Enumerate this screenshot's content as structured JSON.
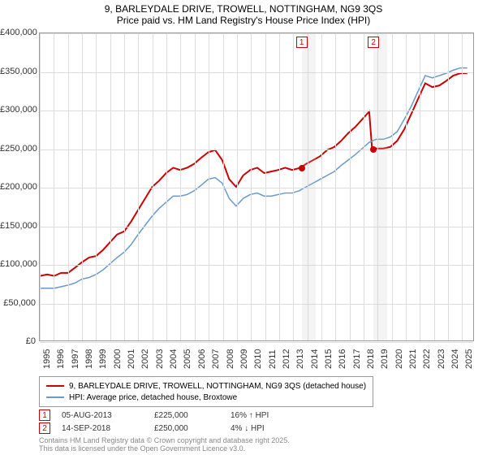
{
  "title": {
    "line1": "9, BARLEYDALE DRIVE, TROWELL, NOTTINGHAM, NG9 3QS",
    "line2": "Price paid vs. HM Land Registry's House Price Index (HPI)"
  },
  "chart": {
    "type": "line",
    "background_color": "#ffffff",
    "grid_color": "#dddddd",
    "border_color": "#999999",
    "x_axis": {
      "min": 1995,
      "max": 2025.9,
      "ticks": [
        1995,
        1996,
        1997,
        1998,
        1999,
        2000,
        2001,
        2002,
        2003,
        2004,
        2005,
        2006,
        2007,
        2008,
        2009,
        2010,
        2011,
        2012,
        2013,
        2014,
        2015,
        2016,
        2017,
        2018,
        2019,
        2020,
        2021,
        2022,
        2023,
        2024,
        2025
      ],
      "tick_fontsize": 11,
      "tick_rotation": -90
    },
    "y_axis": {
      "min": 0,
      "max": 400000,
      "ticks": [
        0,
        50000,
        100000,
        150000,
        200000,
        250000,
        300000,
        350000,
        400000
      ],
      "tick_labels": [
        "£0",
        "£50,000",
        "£100,000",
        "£150,000",
        "£200,000",
        "£250,000",
        "£300,000",
        "£350,000",
        "£400,000"
      ],
      "tick_fontsize": 11
    },
    "series": [
      {
        "name": "property_price",
        "label": "9, BARLEYDALE DRIVE, TROWELL, NOTTINGHAM, NG9 3QS (detached house)",
        "color": "#cc0000",
        "line_width": 2,
        "data": [
          [
            1995,
            84000
          ],
          [
            1995.5,
            86000
          ],
          [
            1996,
            84000
          ],
          [
            1996.5,
            88000
          ],
          [
            1997,
            88000
          ],
          [
            1997.5,
            95000
          ],
          [
            1998,
            102000
          ],
          [
            1998.5,
            108000
          ],
          [
            1999,
            110000
          ],
          [
            1999.5,
            118000
          ],
          [
            2000,
            128000
          ],
          [
            2000.5,
            138000
          ],
          [
            2001,
            142000
          ],
          [
            2001.5,
            155000
          ],
          [
            2002,
            170000
          ],
          [
            2002.5,
            185000
          ],
          [
            2003,
            200000
          ],
          [
            2003.5,
            208000
          ],
          [
            2004,
            218000
          ],
          [
            2004.5,
            225000
          ],
          [
            2005,
            222000
          ],
          [
            2005.5,
            225000
          ],
          [
            2006,
            230000
          ],
          [
            2006.5,
            238000
          ],
          [
            2007,
            245000
          ],
          [
            2007.5,
            248000
          ],
          [
            2008,
            235000
          ],
          [
            2008.5,
            210000
          ],
          [
            2009,
            200000
          ],
          [
            2009.5,
            215000
          ],
          [
            2010,
            222000
          ],
          [
            2010.5,
            225000
          ],
          [
            2011,
            218000
          ],
          [
            2011.5,
            220000
          ],
          [
            2012,
            222000
          ],
          [
            2012.5,
            225000
          ],
          [
            2013,
            222000
          ],
          [
            2013.6,
            225000
          ],
          [
            2014,
            230000
          ],
          [
            2014.5,
            235000
          ],
          [
            2015,
            240000
          ],
          [
            2015.5,
            248000
          ],
          [
            2016,
            252000
          ],
          [
            2016.5,
            260000
          ],
          [
            2017,
            270000
          ],
          [
            2017.5,
            278000
          ],
          [
            2018,
            288000
          ],
          [
            2018.5,
            298000
          ],
          [
            2018.7,
            250000
          ],
          [
            2019,
            250000
          ],
          [
            2019.5,
            250000
          ],
          [
            2020,
            252000
          ],
          [
            2020.5,
            260000
          ],
          [
            2021,
            275000
          ],
          [
            2021.5,
            295000
          ],
          [
            2022,
            315000
          ],
          [
            2022.5,
            335000
          ],
          [
            2023,
            330000
          ],
          [
            2023.5,
            332000
          ],
          [
            2024,
            338000
          ],
          [
            2024.5,
            345000
          ],
          [
            2025,
            348000
          ],
          [
            2025.5,
            348000
          ]
        ]
      },
      {
        "name": "hpi",
        "label": "HPI: Average price, detached house, Broxtowe",
        "color": "#6699cc",
        "line_width": 1.5,
        "data": [
          [
            1995,
            68000
          ],
          [
            1995.5,
            68000
          ],
          [
            1996,
            68000
          ],
          [
            1996.5,
            70000
          ],
          [
            1997,
            72000
          ],
          [
            1997.5,
            75000
          ],
          [
            1998,
            80000
          ],
          [
            1998.5,
            82000
          ],
          [
            1999,
            86000
          ],
          [
            1999.5,
            92000
          ],
          [
            2000,
            100000
          ],
          [
            2000.5,
            108000
          ],
          [
            2001,
            115000
          ],
          [
            2001.5,
            125000
          ],
          [
            2002,
            138000
          ],
          [
            2002.5,
            150000
          ],
          [
            2003,
            162000
          ],
          [
            2003.5,
            172000
          ],
          [
            2004,
            180000
          ],
          [
            2004.5,
            188000
          ],
          [
            2005,
            188000
          ],
          [
            2005.5,
            190000
          ],
          [
            2006,
            195000
          ],
          [
            2006.5,
            202000
          ],
          [
            2007,
            210000
          ],
          [
            2007.5,
            212000
          ],
          [
            2008,
            205000
          ],
          [
            2008.5,
            185000
          ],
          [
            2009,
            175000
          ],
          [
            2009.5,
            185000
          ],
          [
            2010,
            190000
          ],
          [
            2010.5,
            192000
          ],
          [
            2011,
            188000
          ],
          [
            2011.5,
            188000
          ],
          [
            2012,
            190000
          ],
          [
            2012.5,
            192000
          ],
          [
            2013,
            192000
          ],
          [
            2013.5,
            195000
          ],
          [
            2014,
            200000
          ],
          [
            2014.5,
            205000
          ],
          [
            2015,
            210000
          ],
          [
            2015.5,
            215000
          ],
          [
            2016,
            220000
          ],
          [
            2016.5,
            228000
          ],
          [
            2017,
            235000
          ],
          [
            2017.5,
            242000
          ],
          [
            2018,
            250000
          ],
          [
            2018.5,
            258000
          ],
          [
            2019,
            262000
          ],
          [
            2019.5,
            262000
          ],
          [
            2020,
            265000
          ],
          [
            2020.5,
            272000
          ],
          [
            2021,
            288000
          ],
          [
            2021.5,
            305000
          ],
          [
            2022,
            325000
          ],
          [
            2022.5,
            345000
          ],
          [
            2023,
            342000
          ],
          [
            2023.5,
            345000
          ],
          [
            2024,
            348000
          ],
          [
            2024.5,
            352000
          ],
          [
            2025,
            355000
          ],
          [
            2025.5,
            355000
          ]
        ]
      }
    ],
    "markers": [
      {
        "n": "1",
        "x": 2013.6,
        "y": 225000,
        "color": "#cc0000",
        "band_end": 2014.6
      },
      {
        "n": "2",
        "x": 2018.7,
        "y": 250000,
        "color": "#cc0000",
        "band_end": 2019.7
      }
    ]
  },
  "legend": {
    "border_color": "#999999",
    "items": [
      {
        "color": "#cc0000",
        "label": "9, BARLEYDALE DRIVE, TROWELL, NOTTINGHAM, NG9 3QS (detached house)"
      },
      {
        "color": "#6699cc",
        "label": "HPI: Average price, detached house, Broxtowe"
      }
    ]
  },
  "datapoints": [
    {
      "n": "1",
      "color": "#cc0000",
      "date": "05-AUG-2013",
      "price": "£225,000",
      "delta": "16% ↑ HPI"
    },
    {
      "n": "2",
      "color": "#cc0000",
      "date": "14-SEP-2018",
      "price": "£250,000",
      "delta": "4% ↓ HPI"
    }
  ],
  "attribution": {
    "line1": "Contains HM Land Registry data © Crown copyright and database right 2025.",
    "line2": "This data is licensed under the Open Government Licence v3.0."
  }
}
